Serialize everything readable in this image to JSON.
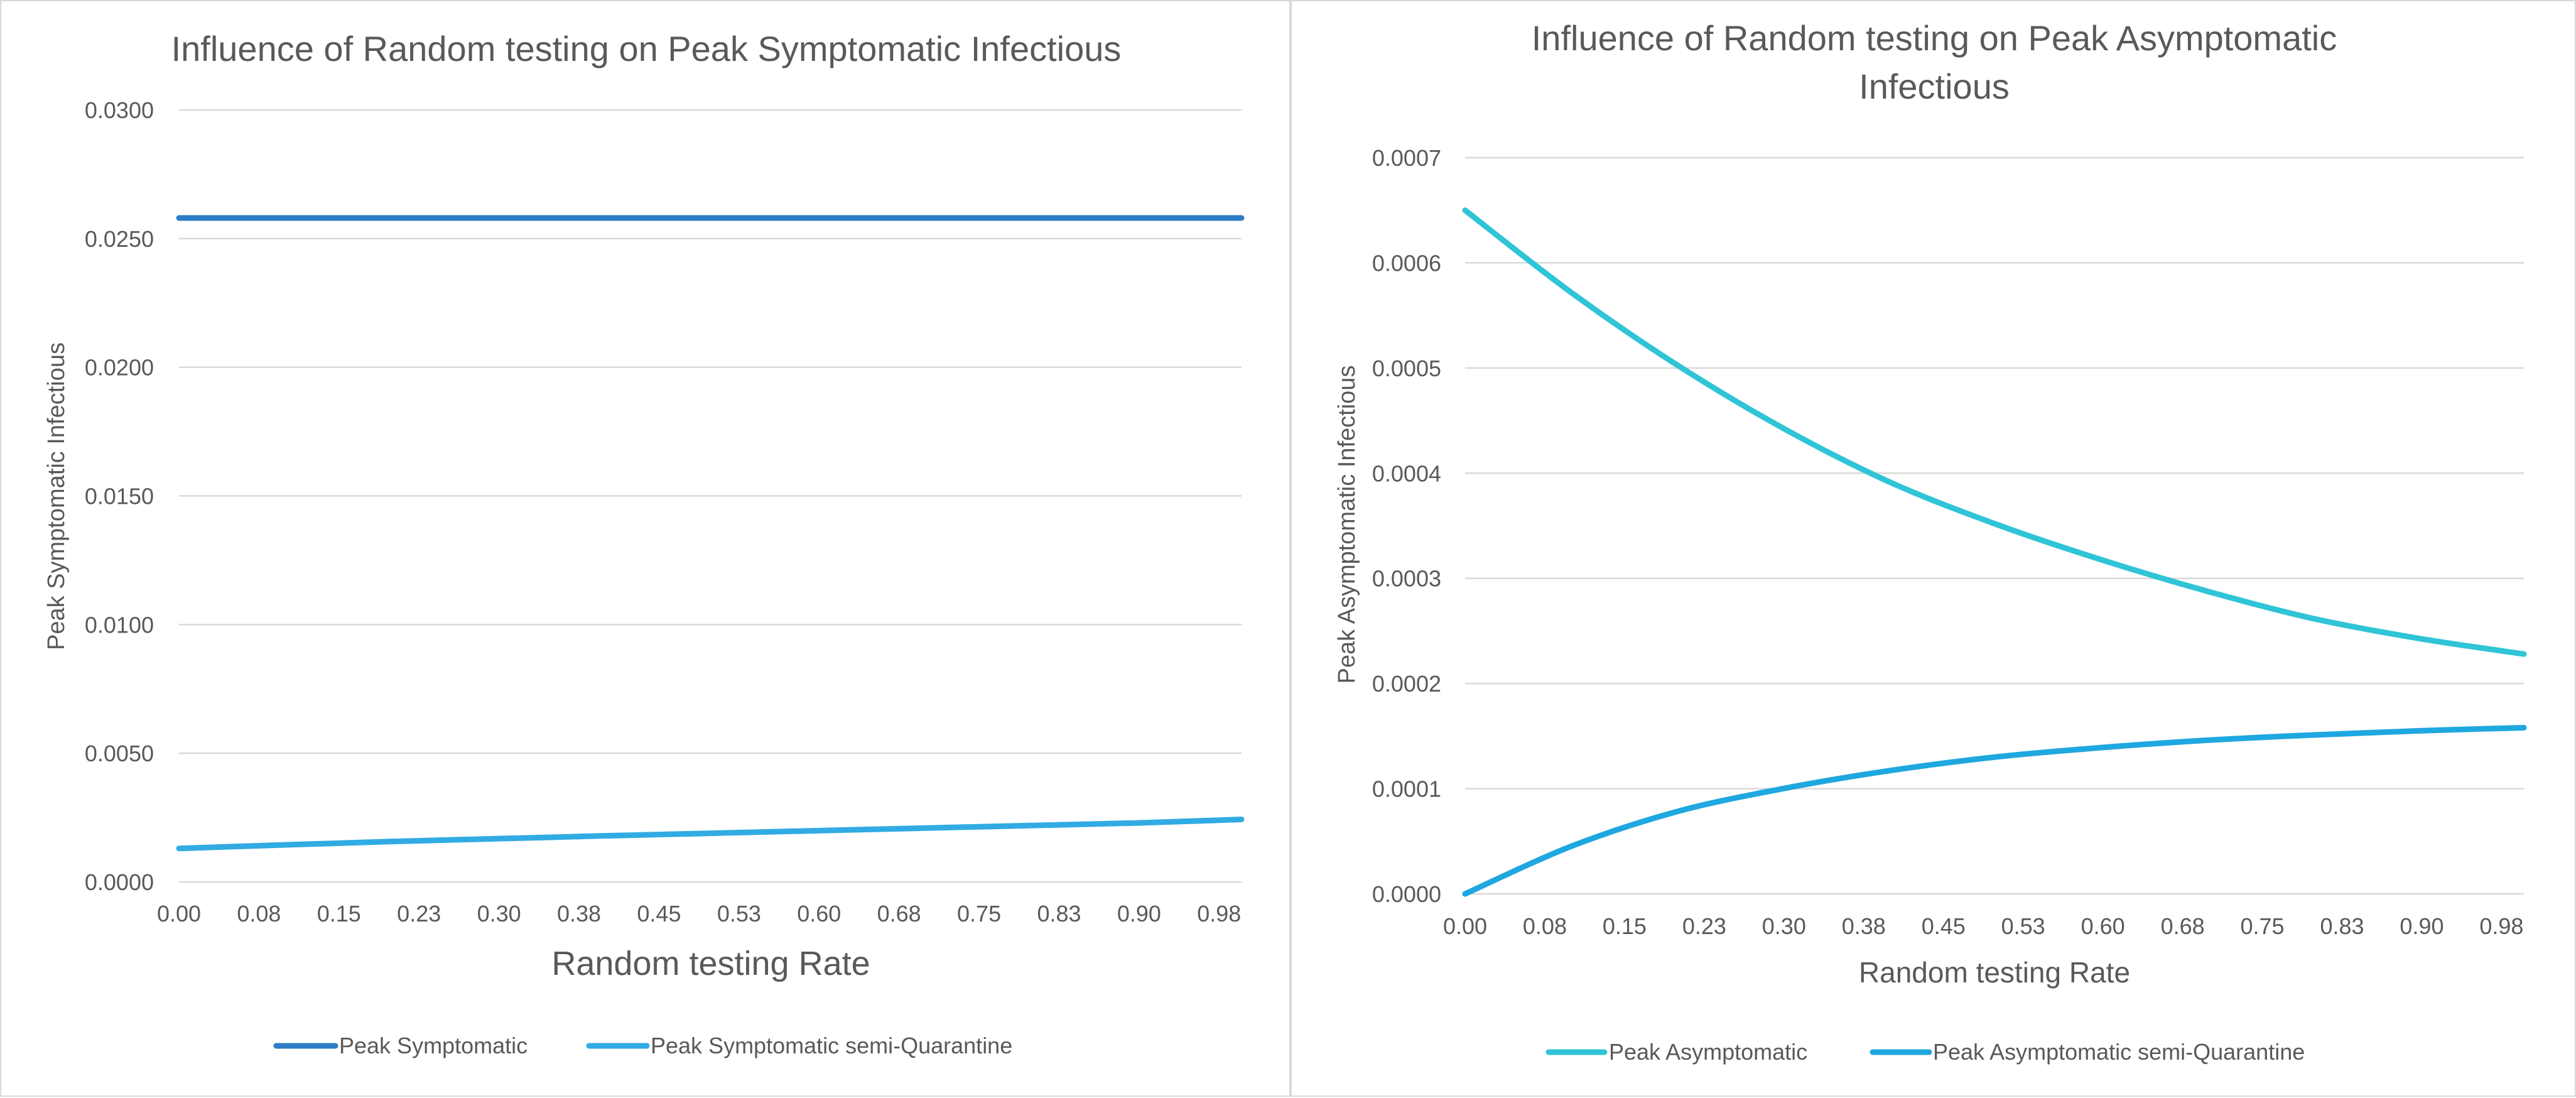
{
  "colors": {
    "series_dark_blue": "#2e7cc6",
    "series_light_blue": "#31abe3",
    "series_cyan": "#2fc4d6",
    "series_blue": "#1fa7e0",
    "text": "#595959",
    "grid": "#d9d9d9"
  },
  "chart_data": [
    {
      "type": "line",
      "title": "Influence of Random testing on Peak Symptomatic Infectious",
      "xlabel": "Random testing Rate",
      "ylabel": "Peak Symptomatic Infectious",
      "x_tick_labels": [
        "0.00",
        "0.08",
        "0.15",
        "0.23",
        "0.30",
        "0.38",
        "0.45",
        "0.53",
        "0.60",
        "0.68",
        "0.75",
        "0.83",
        "0.90",
        "0.98"
      ],
      "y_tick_labels": [
        "0.0000",
        "0.0050",
        "0.0100",
        "0.0150",
        "0.0200",
        "0.0250",
        "0.0300"
      ],
      "xlim": [
        0,
        1
      ],
      "ylim": [
        0,
        0.03
      ],
      "grid": "horizontal",
      "legend_position": "bottom",
      "x": [
        0.0,
        0.1,
        0.2,
        0.3,
        0.4,
        0.5,
        0.6,
        0.7,
        0.8,
        0.9,
        1.0
      ],
      "series": [
        {
          "name": "Peak Symptomatic",
          "color": "#2e7cc6",
          "values": [
            0.0258,
            0.0258,
            0.0258,
            0.0258,
            0.0258,
            0.0258,
            0.0258,
            0.0258,
            0.0258,
            0.0258,
            0.0258
          ]
        },
        {
          "name": "Peak Symptomatic semi-Quarantine",
          "color": "#31abe3",
          "values": [
            0.0013,
            0.00144,
            0.00157,
            0.00168,
            0.00179,
            0.00189,
            0.00199,
            0.00209,
            0.00219,
            0.00229,
            0.00243
          ]
        }
      ]
    },
    {
      "type": "line",
      "title": "Influence of Random testing on Peak Asymptomatic Infectious",
      "xlabel": "Random testing Rate",
      "ylabel": "Peak Asymptomatic Infectious",
      "x_tick_labels": [
        "0.00",
        "0.08",
        "0.15",
        "0.23",
        "0.30",
        "0.38",
        "0.45",
        "0.53",
        "0.60",
        "0.68",
        "0.75",
        "0.83",
        "0.90",
        "0.98"
      ],
      "y_tick_labels": [
        "0.0000",
        "0.0001",
        "0.0002",
        "0.0003",
        "0.0004",
        "0.0005",
        "0.0006",
        "0.0007"
      ],
      "xlim": [
        0,
        1
      ],
      "ylim": [
        0,
        0.0007
      ],
      "grid": "horizontal",
      "legend_position": "bottom",
      "x": [
        0.0,
        0.1,
        0.2,
        0.3,
        0.4,
        0.5,
        0.6,
        0.7,
        0.8,
        0.9,
        1.0
      ],
      "series": [
        {
          "name": "Peak Asymptomatic",
          "color": "#2fc4d6",
          "values": [
            0.00065,
            0.000572,
            0.000503,
            0.000443,
            0.000392,
            0.000352,
            0.000318,
            0.000288,
            0.000262,
            0.000243,
            0.000228
          ]
        },
        {
          "name": "Peak Asymptomatic semi-Quarantine",
          "color": "#1fa7e0",
          "values": [
            0.0,
            4.51e-05,
            7.82e-05,
            0.0001,
            0.000117,
            0.00013,
            0.000139,
            0.000146,
            0.000151,
            0.000155,
            0.000158
          ]
        }
      ]
    }
  ]
}
